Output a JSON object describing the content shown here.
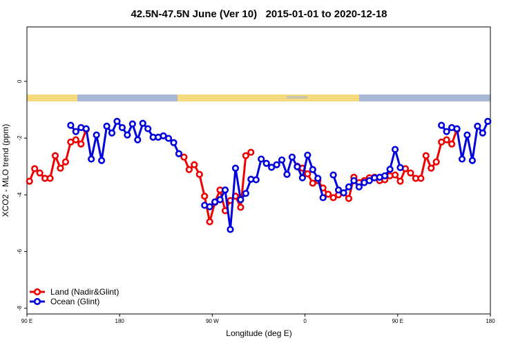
{
  "chart_data": {
    "type": "line",
    "title": "42.5N-47.5N June (Ver 10)   2015-01-01 to 2020-12-18",
    "x_label": "Longitude (deg E)",
    "y_label": "XCO2 - MLO trend (ppm)",
    "x": [
      92.5,
      97.5,
      102.5,
      107.5,
      112.5,
      117.5,
      122.5,
      127.5,
      132.5,
      137.5,
      142.5,
      147.5,
      152.5,
      157.5,
      162.5,
      167.5,
      172.5,
      177.5,
      182.5,
      187.5,
      192.5,
      197.5,
      202.5,
      207.5,
      212.5,
      217.5,
      222.5,
      227.5,
      232.5,
      237.5,
      242.5,
      247.5,
      252.5,
      257.5,
      262.5,
      267.5,
      272.5,
      277.5,
      282.5,
      287.5,
      292.5,
      297.5,
      302.5,
      307.5,
      312.5,
      317.5,
      322.5,
      327.5,
      332.5,
      337.5,
      342.5,
      347.5,
      352.5,
      357.5,
      362.5,
      367.5,
      372.5,
      377.5,
      382.5,
      387.5,
      392.5,
      397.5,
      402.5,
      407.5,
      412.5,
      417.5,
      422.5,
      427.5,
      432.5,
      437.5,
      442.5,
      447.5,
      452.5,
      457.5,
      462.5,
      467.5,
      472.5,
      477.5,
      482.5,
      487.5,
      492.5,
      497.5,
      502.5,
      507.5,
      512.5,
      517.5,
      522.5,
      527.5,
      532.5,
      537.5
    ],
    "series": [
      {
        "name": "Land (Nadir&Glint)",
        "color": "#ee0000",
        "values": [
          -3.52,
          -3.08,
          -3.23,
          -3.42,
          -3.42,
          -2.62,
          -3.06,
          -2.84,
          -2.14,
          -2.06,
          -2.21,
          -1.7,
          null,
          null,
          null,
          null,
          null,
          null,
          null,
          null,
          null,
          null,
          null,
          null,
          null,
          null,
          null,
          null,
          null,
          null,
          -2.67,
          -3.11,
          -2.94,
          -3.28,
          -4.05,
          -4.95,
          -4.27,
          -3.83,
          -4.56,
          -4.2,
          -4.05,
          -4.44,
          -2.62,
          -2.5,
          null,
          null,
          null,
          null,
          null,
          null,
          null,
          null,
          -2.99,
          -3.06,
          -3.26,
          -3.59,
          -3.5,
          -3.76,
          -3.98,
          -4.1,
          -4.0,
          -3.93,
          -4.13,
          -3.38,
          -3.57,
          -3.5,
          -3.4,
          -3.38,
          -3.5,
          -3.47,
          -3.33,
          -3.3,
          -3.52,
          -3.08,
          -3.23,
          -3.42,
          -3.42,
          -2.62,
          -3.06,
          -2.84,
          -2.14,
          -2.06,
          -2.21,
          -1.7,
          null,
          null,
          null,
          null,
          null,
          null
        ]
      },
      {
        "name": "Ocean (Glint)",
        "color": "#0000dd",
        "values": [
          null,
          null,
          null,
          null,
          null,
          null,
          null,
          null,
          -1.55,
          -1.77,
          -1.63,
          -1.67,
          -2.74,
          -1.89,
          -2.79,
          -1.58,
          -1.82,
          -1.41,
          -1.63,
          -1.89,
          -1.5,
          -2.06,
          -1.48,
          -1.67,
          -1.97,
          -1.97,
          -1.92,
          -2.01,
          -2.16,
          -2.55,
          null,
          null,
          null,
          null,
          -4.37,
          -4.42,
          -4.25,
          -4.17,
          -3.83,
          -5.22,
          -3.06,
          -4.17,
          -3.95,
          -3.45,
          -3.47,
          -2.74,
          -2.89,
          -3.03,
          -2.94,
          -2.77,
          -3.28,
          -2.67,
          -3.01,
          -3.4,
          -2.6,
          -3.11,
          -3.42,
          -4.1,
          null,
          -3.3,
          -3.83,
          -3.93,
          -3.72,
          -3.5,
          -3.72,
          -3.57,
          -3.5,
          -3.4,
          -3.38,
          -3.33,
          -3.1,
          -2.4,
          -3.04,
          null,
          null,
          null,
          null,
          null,
          null,
          null,
          -1.55,
          -1.77,
          -1.63,
          -1.67,
          -2.74,
          -1.89,
          -2.79,
          -1.58,
          -1.82,
          -1.41
        ]
      }
    ],
    "xlim": [
      90,
      540
    ],
    "xticks": [
      {
        "value": 90,
        "label": "90 E"
      },
      180,
      {
        "value": 270,
        "label": "90 W"
      },
      {
        "value": 360,
        "label": "0"
      },
      {
        "value": 450,
        "label": "90 E"
      },
      {
        "value": 540,
        "label": "180"
      }
    ],
    "ylim": [
      -8.2,
      1.92
    ],
    "yticks": [
      -8,
      -6,
      -4,
      -2,
      0
    ],
    "legend": "bottom-left"
  }
}
